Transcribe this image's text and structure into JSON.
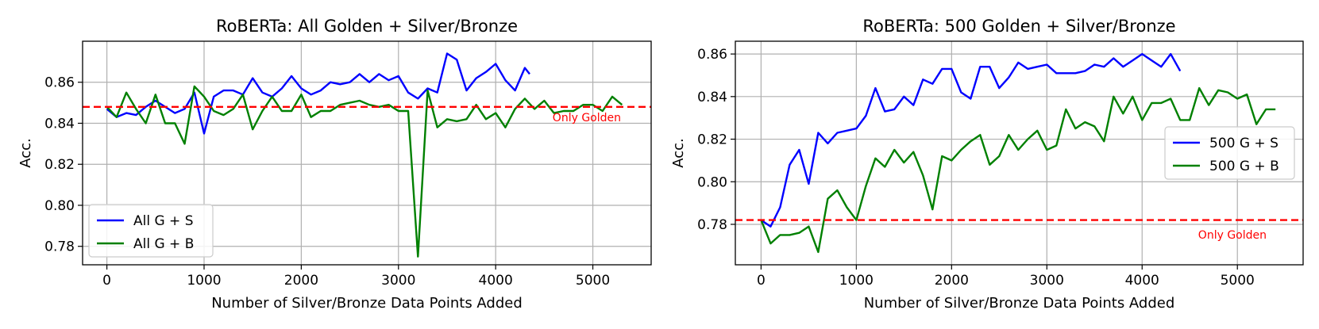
{
  "chart_data": [
    {
      "type": "line",
      "title": "RoBERTa: All Golden + Silver/Bronze",
      "xlabel": "Number of Silver/Bronze Data Points Added",
      "ylabel": "Acc.",
      "xlim": [
        -250,
        5600
      ],
      "ylim": [
        0.771,
        0.88
      ],
      "xticks": [
        0,
        1000,
        2000,
        3000,
        4000,
        5000
      ],
      "yticks": [
        0.78,
        0.8,
        0.82,
        0.84,
        0.86
      ],
      "xtick_labels": [
        "0",
        "1000",
        "2000",
        "3000",
        "4000",
        "5000"
      ],
      "ytick_labels": [
        "0.78",
        "0.80",
        "0.82",
        "0.84",
        "0.86"
      ],
      "grid": true,
      "legend": "lower-left",
      "reference": {
        "y": 0.848,
        "label": "Only Golden",
        "color": "#ff0000"
      },
      "series": [
        {
          "name": "All G + S",
          "color": "#0000ff",
          "x": [
            0,
            100,
            200,
            300,
            400,
            500,
            600,
            700,
            800,
            900,
            1000,
            1100,
            1200,
            1300,
            1400,
            1500,
            1600,
            1700,
            1800,
            1900,
            2000,
            2100,
            2200,
            2300,
            2400,
            2500,
            2600,
            2700,
            2800,
            2900,
            3000,
            3100,
            3200,
            3300,
            3400,
            3500,
            3600,
            3700,
            3800,
            3900,
            4000,
            4100,
            4200,
            4300,
            4350
          ],
          "y": [
            0.847,
            0.843,
            0.845,
            0.844,
            0.848,
            0.851,
            0.848,
            0.845,
            0.847,
            0.855,
            0.835,
            0.853,
            0.856,
            0.856,
            0.854,
            0.862,
            0.855,
            0.853,
            0.857,
            0.863,
            0.857,
            0.854,
            0.856,
            0.86,
            0.859,
            0.86,
            0.864,
            0.86,
            0.864,
            0.861,
            0.863,
            0.855,
            0.852,
            0.857,
            0.855,
            0.874,
            0.871,
            0.856,
            0.862,
            0.865,
            0.869,
            0.861,
            0.856,
            0.867,
            0.864
          ]
        },
        {
          "name": "All G + B",
          "color": "#008000",
          "x": [
            0,
            100,
            200,
            300,
            400,
            500,
            600,
            700,
            800,
            900,
            1000,
            1100,
            1200,
            1300,
            1400,
            1500,
            1600,
            1700,
            1800,
            1900,
            2000,
            2100,
            2200,
            2300,
            2400,
            2500,
            2600,
            2700,
            2800,
            2900,
            3000,
            3100,
            3200,
            3300,
            3400,
            3500,
            3600,
            3700,
            3800,
            3900,
            4000,
            4100,
            4200,
            4300,
            4400,
            4500,
            4600,
            4700,
            4800,
            4900,
            5000,
            5100,
            5200,
            5300
          ],
          "y": [
            0.848,
            0.843,
            0.855,
            0.847,
            0.84,
            0.854,
            0.84,
            0.84,
            0.83,
            0.858,
            0.853,
            0.846,
            0.844,
            0.847,
            0.854,
            0.837,
            0.846,
            0.853,
            0.846,
            0.846,
            0.854,
            0.843,
            0.846,
            0.846,
            0.849,
            0.85,
            0.851,
            0.849,
            0.848,
            0.849,
            0.846,
            0.846,
            0.775,
            0.856,
            0.838,
            0.842,
            0.841,
            0.842,
            0.849,
            0.842,
            0.845,
            0.838,
            0.847,
            0.852,
            0.847,
            0.851,
            0.845,
            0.846,
            0.846,
            0.849,
            0.849,
            0.846,
            0.853,
            0.849
          ]
        }
      ]
    },
    {
      "type": "line",
      "title": "RoBERTa: 500 Golden + Silver/Bronze",
      "xlabel": "Number of Silver/Bronze Data Points Added",
      "ylabel": "Acc.",
      "xlim": [
        -270,
        5690
      ],
      "ylim": [
        0.761,
        0.866
      ],
      "xticks": [
        0,
        1000,
        2000,
        3000,
        4000,
        5000
      ],
      "yticks": [
        0.78,
        0.8,
        0.82,
        0.84,
        0.86
      ],
      "xtick_labels": [
        "0",
        "1000",
        "2000",
        "3000",
        "4000",
        "5000"
      ],
      "ytick_labels": [
        "0.78",
        "0.80",
        "0.82",
        "0.84",
        "0.86"
      ],
      "grid": true,
      "legend": "center-right",
      "reference": {
        "y": 0.782,
        "label": "Only Golden",
        "color": "#ff0000"
      },
      "series": [
        {
          "name": "500 G + S",
          "color": "#0000ff",
          "x": [
            0,
            100,
            200,
            300,
            400,
            500,
            600,
            700,
            800,
            900,
            1000,
            1100,
            1200,
            1300,
            1400,
            1500,
            1600,
            1700,
            1800,
            1900,
            2000,
            2100,
            2200,
            2300,
            2400,
            2500,
            2600,
            2700,
            2800,
            2900,
            3000,
            3100,
            3200,
            3300,
            3400,
            3500,
            3600,
            3700,
            3800,
            3900,
            4000,
            4100,
            4200,
            4300,
            4400
          ],
          "y": [
            0.782,
            0.779,
            0.788,
            0.808,
            0.815,
            0.799,
            0.823,
            0.818,
            0.823,
            0.824,
            0.825,
            0.831,
            0.844,
            0.833,
            0.834,
            0.84,
            0.836,
            0.848,
            0.846,
            0.853,
            0.853,
            0.842,
            0.839,
            0.854,
            0.854,
            0.844,
            0.849,
            0.856,
            0.853,
            0.854,
            0.855,
            0.851,
            0.851,
            0.851,
            0.852,
            0.855,
            0.854,
            0.858,
            0.854,
            0.857,
            0.86,
            0.857,
            0.854,
            0.86,
            0.852
          ]
        },
        {
          "name": "500 G + B",
          "color": "#008000",
          "x": [
            0,
            100,
            200,
            300,
            400,
            500,
            600,
            700,
            800,
            900,
            1000,
            1100,
            1200,
            1300,
            1400,
            1500,
            1600,
            1700,
            1800,
            1900,
            2000,
            2100,
            2200,
            2300,
            2400,
            2500,
            2600,
            2700,
            2800,
            2900,
            3000,
            3100,
            3200,
            3300,
            3400,
            3500,
            3600,
            3700,
            3800,
            3900,
            4000,
            4100,
            4200,
            4300,
            4400,
            4500,
            4600,
            4700,
            4800,
            4900,
            5000,
            5100,
            5200,
            5300,
            5400
          ],
          "y": [
            0.782,
            0.771,
            0.775,
            0.775,
            0.776,
            0.779,
            0.767,
            0.792,
            0.796,
            0.788,
            0.782,
            0.798,
            0.811,
            0.807,
            0.815,
            0.809,
            0.814,
            0.803,
            0.787,
            0.812,
            0.81,
            0.815,
            0.819,
            0.822,
            0.808,
            0.812,
            0.822,
            0.815,
            0.82,
            0.824,
            0.815,
            0.817,
            0.834,
            0.825,
            0.828,
            0.826,
            0.819,
            0.84,
            0.832,
            0.84,
            0.829,
            0.837,
            0.837,
            0.839,
            0.829,
            0.829,
            0.844,
            0.836,
            0.843,
            0.842,
            0.839,
            0.841,
            0.827,
            0.834,
            0.834
          ]
        }
      ]
    }
  ]
}
